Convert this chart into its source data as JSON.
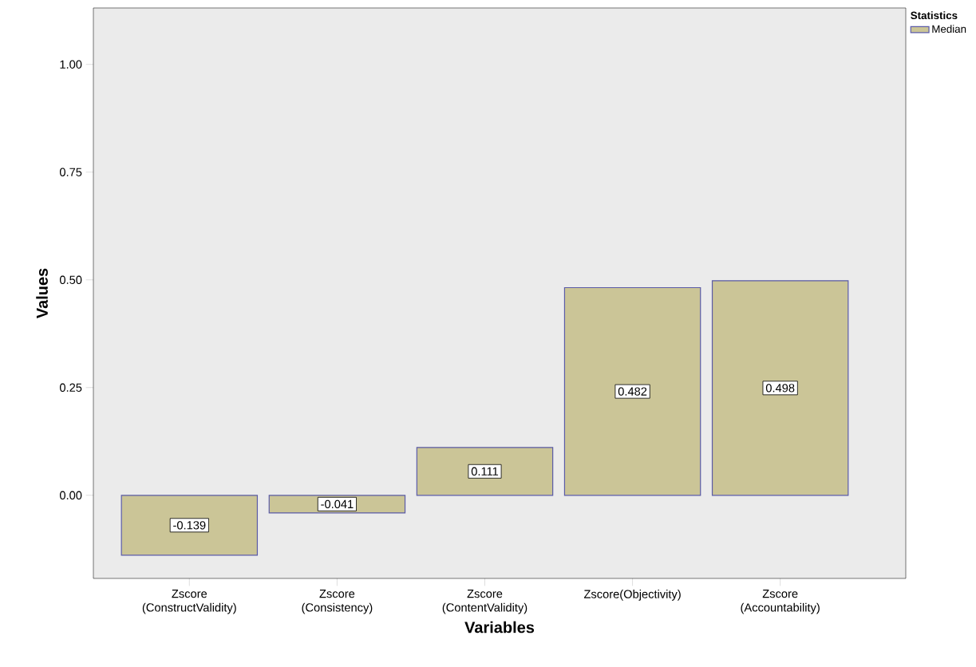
{
  "chart_data": {
    "type": "bar",
    "xlabel": "Variables",
    "ylabel": "Values",
    "legend_title": "Statistics",
    "legend": "top right",
    "categories": [
      "Zscore (ConstructValidity)",
      "Zscore (Consistency)",
      "Zscore (ContentValidity)",
      "Zscore(Objectivity)",
      "Zscore (Accountability)"
    ],
    "series": [
      {
        "name": "Median",
        "color": "#cbc597",
        "values": [
          -0.139,
          -0.041,
          0.111,
          0.482,
          0.498
        ],
        "value_labels": [
          "-0.139",
          "-0.041",
          "0.111",
          "0.482",
          "0.498"
        ]
      }
    ],
    "ylim": [
      -0.193,
      1.131
    ],
    "yticks": [
      {
        "value": 0,
        "label": "0.00"
      },
      {
        "value": 0.25,
        "label": "0.25"
      },
      {
        "value": 0.5,
        "label": "0.50"
      },
      {
        "value": 0.75,
        "label": "0.75"
      },
      {
        "value": 1,
        "label": "1.00"
      }
    ]
  }
}
